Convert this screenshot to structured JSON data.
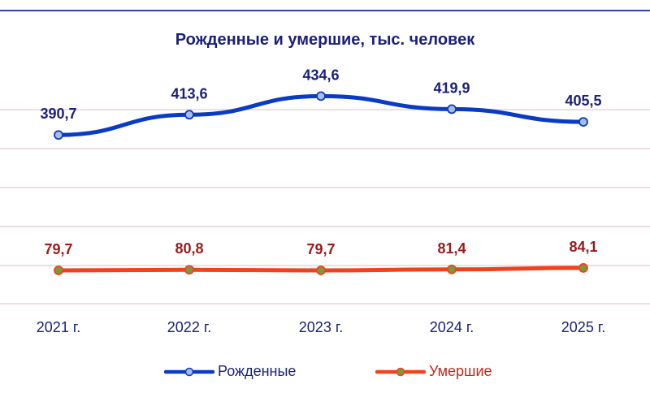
{
  "chart_data": {
    "type": "line",
    "title": "Рожденные и умершие, тыс. человек",
    "categories": [
      "2021 г.",
      "2022 г.",
      "2023 г.",
      "2024 г.",
      "2025 г."
    ],
    "series": [
      {
        "name": "Рожденные",
        "values": [
          390.7,
          413.6,
          434.6,
          419.9,
          405.5
        ],
        "labels": [
          "390,7",
          "413,6",
          "434,6",
          "419,9",
          "405,5"
        ],
        "color": "#0a3bc4",
        "marker_fill": "#a9bde0",
        "label_color": "#1a1f7a"
      },
      {
        "name": "Умершие",
        "values": [
          79.7,
          80.8,
          79.7,
          81.4,
          84.1
        ],
        "labels": [
          "79,7",
          "80,8",
          "79,7",
          "81,4",
          "84,1"
        ],
        "color": "#f0421c",
        "marker_fill": "#7a9a3a",
        "label_color": "#9a1b1b"
      }
    ],
    "grid": true,
    "legend_position": "bottom"
  }
}
